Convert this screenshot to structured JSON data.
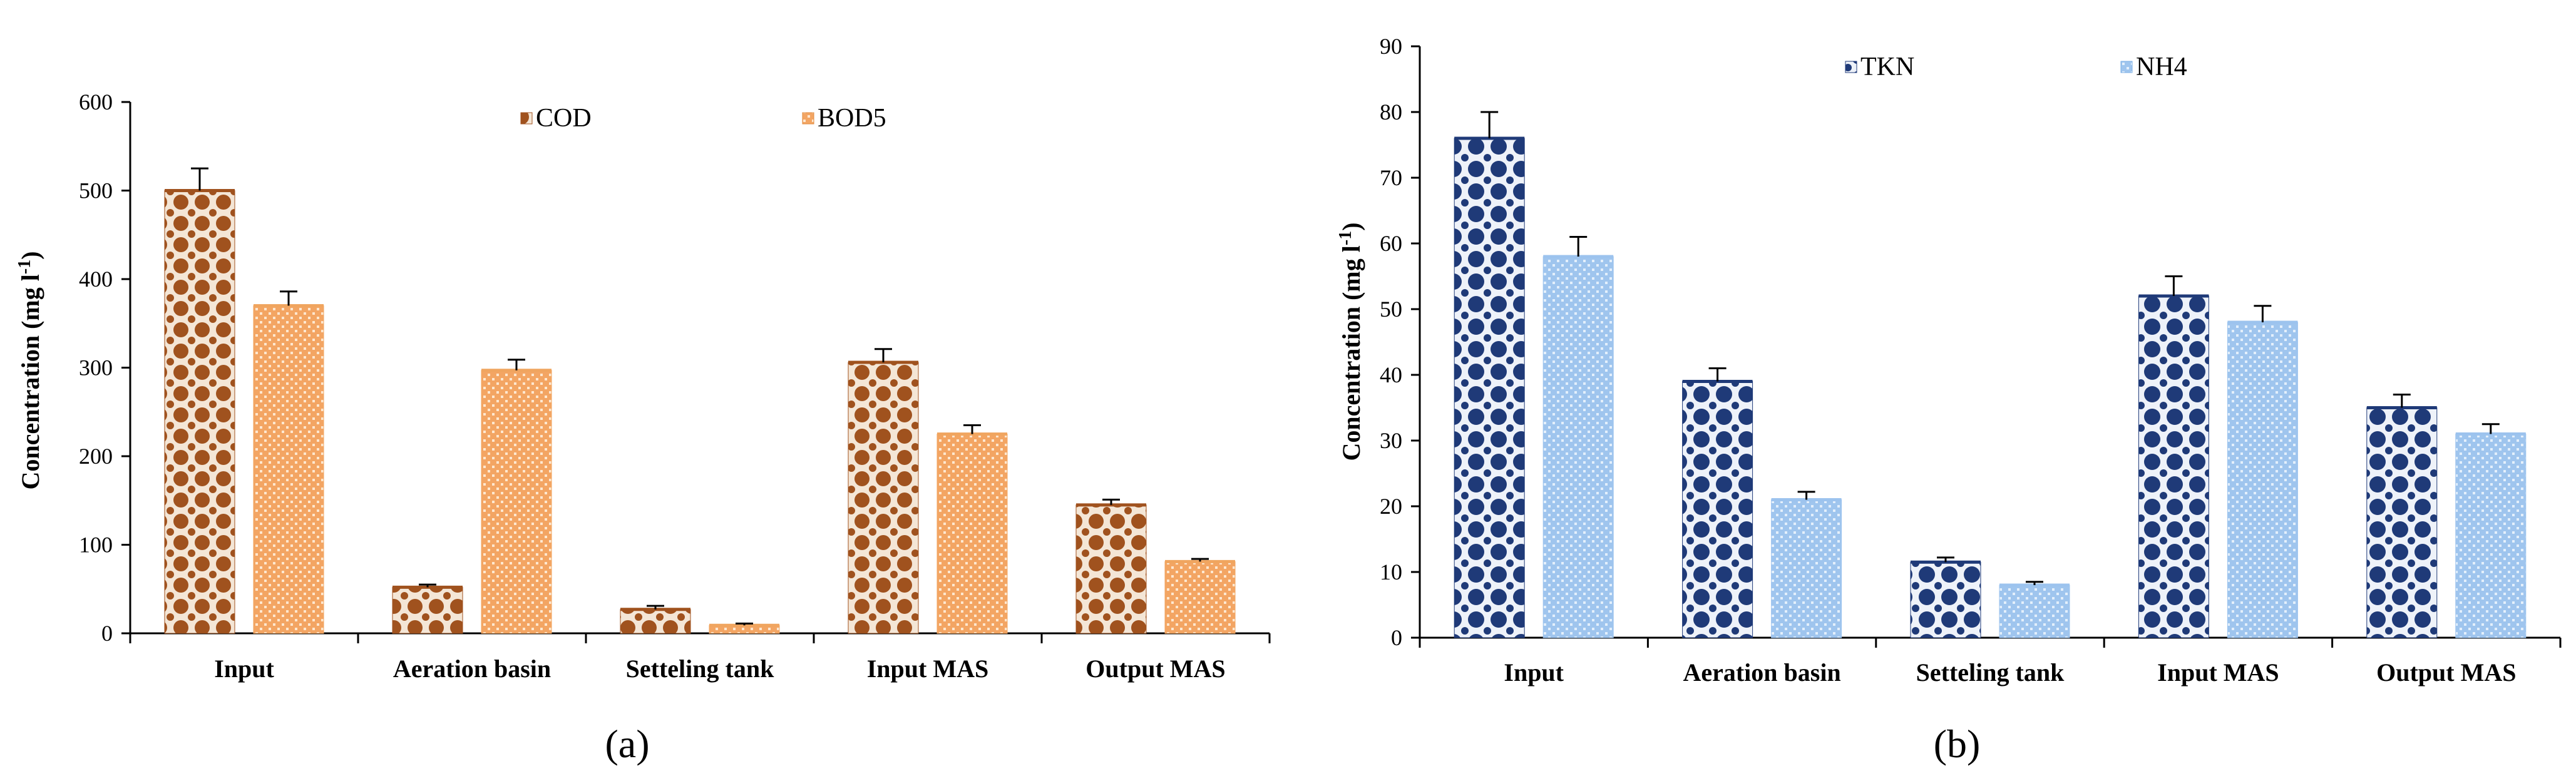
{
  "chart_data": [
    {
      "type": "bar",
      "panel_label": "(a)",
      "categories": [
        "Input",
        "Aeration basin",
        "Setteling tank",
        "Input MAS",
        "Output MAS"
      ],
      "series": [
        {
          "name": "COD",
          "values": [
            500,
            52,
            27,
            306,
            145
          ],
          "errors": [
            25,
            3,
            4,
            15,
            6
          ],
          "color": "#a0521e",
          "fill": "#f3e9df"
        },
        {
          "name": "BOD5",
          "values": [
            370,
            297,
            9,
            225,
            81
          ],
          "errors": [
            16,
            12,
            2,
            10,
            3
          ],
          "color": "#f0a55f",
          "fill": "#fbe6cf"
        }
      ],
      "ylabel": "Concentration (mg l-1)",
      "ylabel_main": "Concentration (mg l",
      "ylabel_sup": "-1",
      "ylabel_close": ")",
      "ylim": [
        0,
        600
      ],
      "yticks": [
        0,
        100,
        200,
        300,
        400,
        500,
        600
      ],
      "legend_position": "top-center"
    },
    {
      "type": "bar",
      "panel_label": "(b)",
      "categories": [
        "Input",
        "Aeration basin",
        "Setteling tank",
        "Input MAS",
        "Output MAS"
      ],
      "series": [
        {
          "name": "TKN",
          "values": [
            76,
            39,
            11.5,
            52,
            35
          ],
          "errors": [
            4,
            2,
            0.7,
            3,
            2
          ],
          "color": "#1f3a78",
          "fill": "#e8edf6"
        },
        {
          "name": "NH4",
          "values": [
            58,
            21,
            8,
            48,
            31
          ],
          "errors": [
            3,
            1.2,
            0.5,
            2.5,
            1.5
          ],
          "color": "#9cc3ee",
          "fill": "#dceaf8"
        }
      ],
      "ylabel": "Concentration (mg l-1)",
      "ylabel_main": "Concentration (mg l",
      "ylabel_sup": "-1",
      "ylabel_close": ")",
      "ylim": [
        0,
        90
      ],
      "yticks": [
        0,
        10,
        20,
        30,
        40,
        50,
        60,
        70,
        80,
        90
      ],
      "legend_position": "top-center"
    }
  ]
}
